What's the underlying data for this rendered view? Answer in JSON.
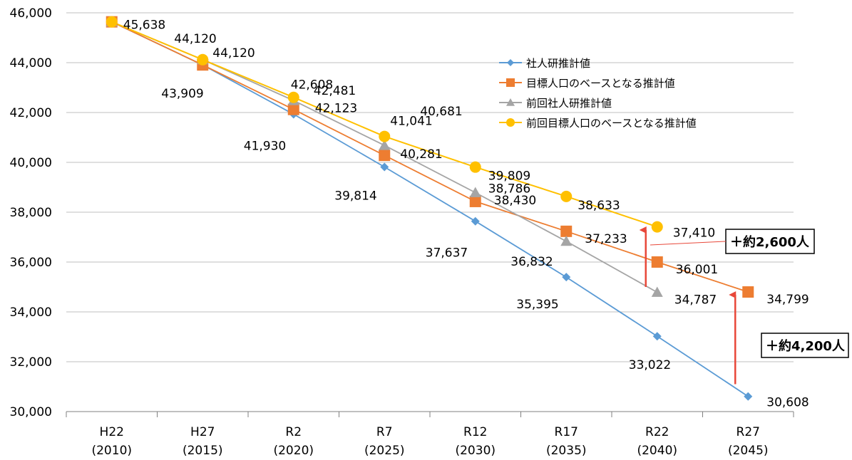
{
  "chart_data": {
    "type": "line",
    "categories": [
      {
        "line1": "H22",
        "line2": "(2010)"
      },
      {
        "line1": "H27",
        "line2": "(2015)"
      },
      {
        "line1": "R2",
        "line2": "(2020)"
      },
      {
        "line1": "R7",
        "line2": "(2025)"
      },
      {
        "line1": "R12",
        "line2": "(2030)"
      },
      {
        "line1": "R17",
        "line2": "(2035)"
      },
      {
        "line1": "R22",
        "line2": "(2040)"
      },
      {
        "line1": "R27",
        "line2": "(2045)"
      }
    ],
    "ylim": [
      30000,
      46000
    ],
    "y_ticks": [
      "30,000",
      "32,000",
      "34,000",
      "36,000",
      "38,000",
      "40,000",
      "42,000",
      "44,000",
      "46,000"
    ],
    "grid": true,
    "legend_position": "top-right",
    "series": [
      {
        "name": "社人研推計値",
        "color": "#5b9bd5",
        "marker": "diamond",
        "values": [
          45638,
          43909,
          41930,
          39814,
          37637,
          35395,
          33022,
          30608
        ],
        "labels": [
          "",
          "43,909",
          "41,930",
          "39,814",
          "37,637",
          "35,395",
          "33,022",
          "30,608"
        ]
      },
      {
        "name": "目標人口のベースとなる推計値",
        "color": "#ed7d31",
        "marker": "square",
        "values": [
          45638,
          43909,
          42123,
          40281,
          38430,
          37233,
          36001,
          34799
        ],
        "labels": [
          "",
          "",
          "42,123",
          "40,281",
          "38,430",
          "37,233",
          "36,001",
          "34,799"
        ]
      },
      {
        "name": "前回社人研推計値",
        "color": "#a5a5a5",
        "marker": "triangle",
        "values": [
          45638,
          44120,
          42481,
          40681,
          38786,
          36832,
          34787,
          null
        ],
        "labels": [
          "",
          "44,120",
          "42,481",
          "40,681",
          "38,786",
          "36,832",
          "34,787",
          ""
        ]
      },
      {
        "name": "前回目標人口のベースとなる推計値",
        "color": "#ffc000",
        "marker": "circle",
        "values": [
          45638,
          44120,
          42608,
          41041,
          39809,
          38633,
          37410,
          null
        ],
        "labels": [
          "45,638",
          "44,120",
          "42,608",
          "41,041",
          "39,809",
          "38,633",
          "37,410",
          ""
        ]
      }
    ],
    "annotations": [
      {
        "text": "＋約2,600人",
        "category_index": 6,
        "from_value": 35000,
        "to_value": 37400,
        "arrow_color": "#e8483a"
      },
      {
        "text": "＋約4,200人",
        "category_index": 7,
        "from_value": 31100,
        "to_value": 34800,
        "arrow_color": "#e8483a"
      }
    ]
  }
}
